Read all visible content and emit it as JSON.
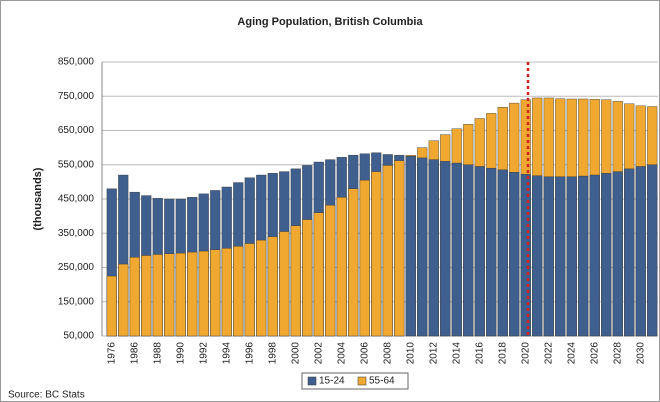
{
  "chart_data": {
    "type": "bar",
    "title": "Aging Population, British Columbia",
    "y_label": "(thousands)",
    "source": "Source: BC Stats",
    "categories": [
      "1976",
      null,
      "1986",
      null,
      "1988",
      null,
      "1990",
      null,
      "1992",
      null,
      "1994",
      null,
      "1996",
      null,
      "1998",
      null,
      "2000",
      null,
      "2002",
      null,
      "2004",
      null,
      "2006",
      null,
      "2008",
      null,
      "2010",
      null,
      "2012",
      null,
      "2014",
      null,
      "2016",
      null,
      "2018",
      null,
      "2020",
      null,
      "2022",
      null,
      "2024",
      null,
      "2026",
      null,
      "2028",
      null,
      "2030",
      null
    ],
    "series": [
      {
        "name": "15-24",
        "color": "#3f5f8f",
        "values": [
          480000,
          520000,
          470000,
          460000,
          452000,
          450000,
          450000,
          455000,
          465000,
          475000,
          485000,
          498000,
          512000,
          520000,
          525000,
          530000,
          538000,
          548000,
          558000,
          565000,
          572000,
          578000,
          582000,
          585000,
          580000,
          578000,
          575000,
          570000,
          565000,
          560000,
          555000,
          550000,
          545000,
          540000,
          535000,
          528000,
          522000,
          518000,
          515000,
          515000,
          515000,
          517000,
          520000,
          525000,
          530000,
          538000,
          545000,
          550000
        ]
      },
      {
        "name": "55-64",
        "color": "#f0a830",
        "values": [
          225000,
          260000,
          280000,
          285000,
          288000,
          290000,
          292000,
          295000,
          298000,
          302000,
          306000,
          312000,
          320000,
          330000,
          340000,
          355000,
          372000,
          390000,
          410000,
          432000,
          455000,
          480000,
          505000,
          530000,
          548000,
          562000,
          578000,
          600000,
          620000,
          638000,
          655000,
          668000,
          685000,
          700000,
          718000,
          730000,
          740000,
          745000,
          745000,
          743000,
          742000,
          742000,
          741000,
          740000,
          735000,
          728000,
          722000,
          720000
        ]
      }
    ],
    "ylim": [
      50000,
      850000
    ],
    "yticks": [
      {
        "value": 50000,
        "label": "50,000"
      },
      {
        "value": 150000,
        "label": "150,000"
      },
      {
        "value": 250000,
        "label": "250,000"
      },
      {
        "value": 350000,
        "label": "350,000"
      },
      {
        "value": 450000,
        "label": "450,000"
      },
      {
        "value": 550000,
        "label": "550,000"
      },
      {
        "value": 650000,
        "label": "650,000"
      },
      {
        "value": 750000,
        "label": "750,000"
      },
      {
        "value": 850000,
        "label": "850,000"
      }
    ],
    "grid": true
  }
}
